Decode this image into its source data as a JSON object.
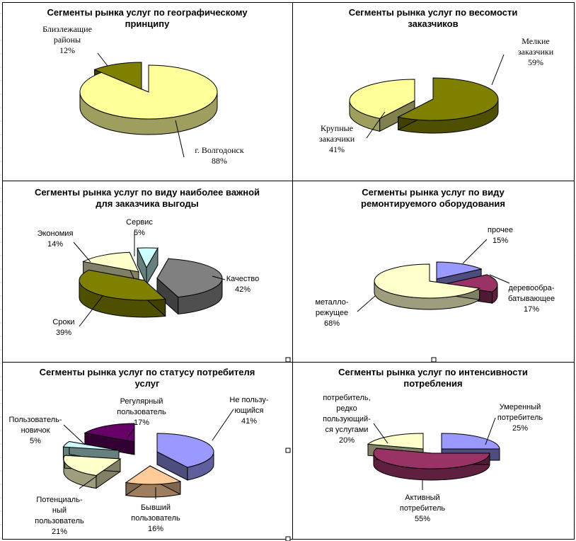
{
  "chart_data": [
    {
      "type": "pie",
      "title": "Сегменты рынка услуг по географическому принципу",
      "categories": [
        "г. Волгодонск",
        "Близлежащие районы"
      ],
      "values": [
        88,
        12
      ],
      "percent_labels": [
        "88%",
        "12%"
      ],
      "colors": [
        "#FFFF99",
        "#808000"
      ]
    },
    {
      "type": "pie",
      "title": "Сегменты рынка услуг по весомости заказчиков",
      "categories": [
        "Мелкие заказчики",
        "Крупные заказчики"
      ],
      "values": [
        59,
        41
      ],
      "percent_labels": [
        "59%",
        "41%"
      ],
      "colors": [
        "#808000",
        "#FFFF99"
      ]
    },
    {
      "type": "pie",
      "title": "Сегменты рынка услуг по виду наиболее важной для заказчика выгоды",
      "categories": [
        "Качество",
        "Сроки",
        "Экономия",
        "Сервис"
      ],
      "values": [
        42,
        39,
        14,
        5
      ],
      "percent_labels": [
        "42%",
        "39%",
        "14%",
        "5%"
      ],
      "colors": [
        "#808080",
        "#808000",
        "#FFFFCC",
        "#CCFFFF"
      ]
    },
    {
      "type": "pie",
      "title": "Сегменты рынка услуг по виду ремонтируемого оборудования",
      "categories": [
        "прочее",
        "деревообрабатывающее",
        "металлорежущее"
      ],
      "values": [
        15,
        17,
        68
      ],
      "percent_labels": [
        "15%",
        "17%",
        "68%"
      ],
      "colors": [
        "#9999FF",
        "#993366",
        "#FFFFCC"
      ]
    },
    {
      "type": "pie",
      "title": "Сегменты рынка услуг по статусу потребителя услуг",
      "categories": [
        "Не пользующийся",
        "Бывший пользователь",
        "Потенциальный пользователь",
        "Пользователь-новичок",
        "Регулярный пользователь"
      ],
      "values": [
        41,
        16,
        21,
        5,
        17
      ],
      "percent_labels": [
        "41%",
        "16%",
        "21%",
        "5%",
        "17%"
      ],
      "colors": [
        "#9999FF",
        "#FFCC99",
        "#FFFFCC",
        "#CCFFFF",
        "#660066"
      ]
    },
    {
      "type": "pie",
      "title": "Сегменты рынка услуг по интенсивности потребления",
      "categories": [
        "Умеренный потребитель",
        "Активный потребитель",
        "потребитель, редко пользующийся услугами"
      ],
      "values": [
        25,
        55,
        20
      ],
      "percent_labels": [
        "25%",
        "55%",
        "20%"
      ],
      "colors": [
        "#9999FF",
        "#993366",
        "#FFFFCC"
      ]
    }
  ],
  "panels": [
    {
      "title_lines": [
        "Сегменты рынка услуг по географическому",
        "принципу"
      ],
      "slice_labels": [
        {
          "lines": [
            "г. Волгодонск",
            "88%"
          ]
        },
        {
          "lines": [
            "Близлежащие",
            "районы",
            "12%"
          ]
        }
      ]
    },
    {
      "title_lines": [
        "Сегменты рынка услуг по весомости",
        "заказчиков"
      ],
      "slice_labels": [
        {
          "lines": [
            "Мелкие",
            "заказчики",
            "59%"
          ]
        },
        {
          "lines": [
            "Крупные",
            "заказчики",
            "41%"
          ]
        }
      ]
    },
    {
      "title_lines": [
        "Сегменты рынка услуг по виду наиболее важной",
        "для заказчика выгоды"
      ],
      "slice_labels": [
        {
          "lines": [
            "Качество",
            "42%"
          ]
        },
        {
          "lines": [
            "Сроки",
            "39%"
          ]
        },
        {
          "lines": [
            "Экономия",
            "14%"
          ]
        },
        {
          "lines": [
            "Сервис",
            "5%"
          ]
        }
      ]
    },
    {
      "title_lines": [
        "Сегменты рынка услуг по виду",
        "ремонтируемого оборудования"
      ],
      "slice_labels": [
        {
          "lines": [
            "прочее",
            "15%"
          ]
        },
        {
          "lines": [
            "деревообра-",
            "батывающее",
            "17%"
          ]
        },
        {
          "lines": [
            "металло-",
            "режущее",
            "68%"
          ]
        }
      ]
    },
    {
      "title_lines": [
        "Сегменты рынка услуг по статусу потребителя",
        "услуг"
      ],
      "slice_labels": [
        {
          "lines": [
            "Не пользу-",
            "ющийся",
            "41%"
          ]
        },
        {
          "lines": [
            "Бывший",
            "пользователь",
            "16%"
          ]
        },
        {
          "lines": [
            "Потенциаль-",
            "ный",
            "пользователь",
            "21%"
          ]
        },
        {
          "lines": [
            "Пользователь-",
            "новичок",
            "5%"
          ]
        },
        {
          "lines": [
            "Регулярный",
            "пользователь",
            "17%"
          ]
        }
      ]
    },
    {
      "title_lines": [
        "Сегменты рынка услуг по интенсивности",
        "потребления"
      ],
      "slice_labels": [
        {
          "lines": [
            "Умеренный",
            "потребитель",
            "25%"
          ]
        },
        {
          "lines": [
            "Активный",
            "потребитель",
            "55%"
          ]
        },
        {
          "lines": [
            "потребитель,",
            "редко",
            "пользующий-",
            "ся услугами",
            "20%"
          ]
        }
      ]
    }
  ]
}
